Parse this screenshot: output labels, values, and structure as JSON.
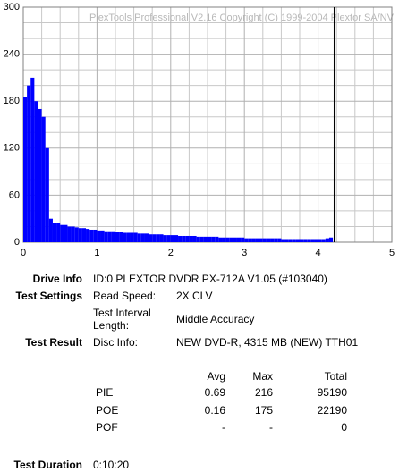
{
  "chart_data": {
    "type": "bar",
    "title": "PlexTools Professional V2.16 Copyright (C) 1999-2004 Plextor SA/NV",
    "x": [
      0.05,
      0.1,
      0.15,
      0.2,
      0.25,
      0.3,
      0.35,
      0.4,
      0.45,
      0.5,
      0.55,
      0.6,
      0.65,
      0.7,
      0.75,
      0.8,
      0.85,
      0.9,
      0.95,
      1.0,
      1.05,
      1.1,
      1.15,
      1.2,
      1.25,
      1.3,
      1.35,
      1.4,
      1.45,
      1.5,
      1.55,
      1.6,
      1.65,
      1.7,
      1.75,
      1.8,
      1.85,
      1.9,
      1.95,
      2.0,
      2.05,
      2.1,
      2.15,
      2.2,
      2.25,
      2.3,
      2.35,
      2.4,
      2.45,
      2.5,
      2.55,
      2.6,
      2.65,
      2.7,
      2.75,
      2.8,
      2.85,
      2.9,
      2.95,
      3.0,
      3.05,
      3.1,
      3.15,
      3.2,
      3.25,
      3.3,
      3.35,
      3.4,
      3.45,
      3.5,
      3.55,
      3.6,
      3.65,
      3.7,
      3.75,
      3.8,
      3.85,
      3.9,
      3.95,
      4.0,
      4.05,
      4.1,
      4.15,
      4.2
    ],
    "values": [
      185,
      200,
      210,
      180,
      170,
      160,
      120,
      30,
      25,
      24,
      22,
      22,
      20,
      20,
      19,
      18,
      18,
      17,
      16,
      16,
      15,
      15,
      14,
      14,
      14,
      13,
      13,
      12,
      12,
      12,
      12,
      11,
      11,
      11,
      10,
      10,
      10,
      10,
      9,
      9,
      9,
      9,
      8,
      8,
      8,
      8,
      8,
      7,
      7,
      7,
      7,
      7,
      7,
      6,
      6,
      6,
      6,
      6,
      6,
      6,
      5,
      5,
      5,
      5,
      5,
      5,
      5,
      5,
      5,
      5,
      4,
      4,
      4,
      4,
      4,
      4,
      4,
      4,
      4,
      4,
      4,
      4,
      5,
      6
    ],
    "color": "#0000ff",
    "end_line": 4.22,
    "xlim": [
      0,
      5
    ],
    "xticks": [
      0,
      1,
      2,
      3,
      4,
      5
    ],
    "ylim": [
      0,
      300
    ],
    "yticks": [
      0,
      60,
      120,
      180,
      240,
      300
    ],
    "yminorticks": [
      20,
      40,
      80,
      100,
      140,
      160,
      200,
      220,
      260,
      280
    ],
    "xminorticks": [
      0.25,
      0.5,
      0.75,
      1.25,
      1.5,
      1.75,
      2.25,
      2.5,
      2.75,
      3.25,
      3.5,
      3.75,
      4.25,
      4.5,
      4.75
    ],
    "grid": true
  },
  "info": {
    "drive_label": "Drive Info",
    "drive_value": "ID:0 PLEXTOR DVDR PX-712A V1.05 (#103040)",
    "settings_label": "Test Settings",
    "read_speed_label": "Read Speed:",
    "read_speed_value": "2X CLV",
    "interval_label": "Test Interval Length:",
    "interval_value": "Middle Accuracy",
    "result_label": "Test Result",
    "disc_label": "Disc Info:",
    "disc_value": "NEW DVD-R, 4315 MB (NEW) TTH01",
    "table": {
      "header": [
        "Avg",
        "Max",
        "Total"
      ],
      "rows": [
        [
          "PIE",
          0.69,
          216,
          95190
        ],
        [
          "POE",
          0.16,
          175,
          22190
        ],
        [
          "POF",
          "-",
          "-",
          0
        ]
      ]
    },
    "duration_label": "Test Duration",
    "duration_value": "0:10:20"
  }
}
